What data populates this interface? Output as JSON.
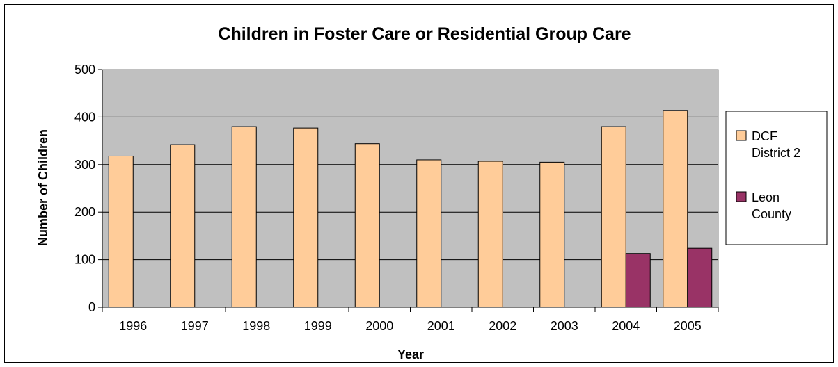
{
  "chart_data": {
    "type": "bar",
    "title": "Children in Foster Care or Residential Group Care",
    "xlabel": "Year",
    "ylabel": "Number of Children",
    "ylim": [
      0,
      500
    ],
    "yticks": [
      0,
      100,
      200,
      300,
      400,
      500
    ],
    "grid": true,
    "legend_position": "right",
    "categories": [
      "1996",
      "1997",
      "1998",
      "1999",
      "2000",
      "2001",
      "2002",
      "2003",
      "2004",
      "2005"
    ],
    "series": [
      {
        "name": "DCF District 2",
        "legend_lines": [
          "DCF",
          "District 2"
        ],
        "color": "#FFCC99",
        "values": [
          318,
          342,
          380,
          377,
          344,
          310,
          307,
          305,
          380,
          414
        ]
      },
      {
        "name": "Leon County",
        "legend_lines": [
          "Leon",
          "County"
        ],
        "color": "#993366",
        "values": [
          null,
          null,
          null,
          null,
          null,
          null,
          null,
          null,
          113,
          124
        ]
      }
    ],
    "plot_background": "#C0C0C0"
  }
}
